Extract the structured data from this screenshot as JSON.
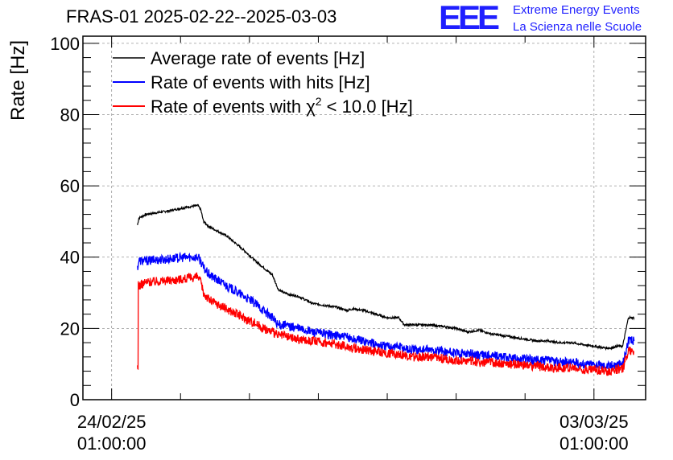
{
  "chart_data": {
    "type": "line",
    "title": "FRAS-01 2025-02-22--2025-03-03",
    "ylabel": "Rate [Hz]",
    "xlabel": "",
    "ylim": [
      0,
      102
    ],
    "yticks": [
      0,
      20,
      40,
      60,
      80,
      100
    ],
    "x_unit": "hours since 24/02/25 01:00:00",
    "xlim": [
      -10,
      186
    ],
    "xticks": [
      {
        "x": 0,
        "line1": "24/02/25",
        "line2": "01:00:00"
      },
      {
        "x": 168,
        "line1": "03/03/25",
        "line2": "01:00:00"
      }
    ],
    "grid": true,
    "legend_position": "top-left",
    "series": [
      {
        "name": "Average rate of events [Hz]",
        "color": "#000000",
        "noise": 0.3,
        "x": [
          9,
          9.5,
          12,
          20,
          26,
          30,
          31,
          32,
          34,
          40,
          46,
          50,
          53,
          56,
          58,
          60,
          62,
          65,
          70,
          78,
          82,
          84,
          88,
          92,
          96,
          100,
          102,
          104,
          110,
          116,
          120,
          124,
          128,
          132,
          136,
          140,
          144,
          148,
          152,
          156,
          160,
          164,
          168,
          172,
          174,
          176,
          178,
          180,
          182
        ],
        "y": [
          49,
          51,
          52,
          53,
          54,
          54.5,
          53.5,
          50,
          48.5,
          46,
          42,
          39,
          37,
          35,
          31,
          30,
          29.5,
          29,
          27,
          26,
          25,
          25.5,
          25,
          24,
          23,
          23,
          21,
          21,
          21,
          20.5,
          20,
          19,
          19.5,
          18.5,
          18,
          17.5,
          17,
          16.5,
          16.5,
          16,
          16,
          15.5,
          15,
          14.5,
          14.5,
          15,
          15,
          23,
          23
        ]
      },
      {
        "name": "Rate of events with hits [Hz]",
        "color": "#0000ff",
        "noise": 1.3,
        "x": [
          9,
          9.5,
          12,
          20,
          26,
          30,
          31,
          32,
          34,
          40,
          46,
          50,
          53,
          56,
          58,
          60,
          62,
          65,
          70,
          78,
          82,
          84,
          88,
          92,
          96,
          100,
          102,
          104,
          110,
          116,
          120,
          124,
          128,
          132,
          136,
          140,
          144,
          148,
          152,
          156,
          160,
          164,
          168,
          172,
          174,
          176,
          178,
          180,
          182
        ],
        "y": [
          37,
          39,
          39,
          39.5,
          40,
          40,
          39,
          37,
          35,
          32,
          29,
          27,
          25,
          23,
          21,
          21,
          20.5,
          20,
          19,
          18,
          17.5,
          17,
          16.5,
          15.5,
          15,
          15,
          14.5,
          14,
          14,
          13.5,
          13,
          13,
          12.5,
          12.5,
          12,
          11.5,
          11.5,
          11,
          11,
          10.5,
          10.5,
          10,
          10,
          9.5,
          9.5,
          10,
          10,
          16.5,
          16.5
        ]
      },
      {
        "name": "Rate of events with χ² < 10.0 [Hz]",
        "color": "#ff0000",
        "noise": 1.3,
        "x": [
          9,
          9.3,
          9.6,
          12,
          20,
          26,
          30,
          31,
          32,
          34,
          40,
          46,
          50,
          53,
          56,
          58,
          60,
          62,
          65,
          70,
          78,
          82,
          84,
          88,
          92,
          96,
          100,
          102,
          104,
          110,
          116,
          120,
          124,
          128,
          132,
          136,
          140,
          144,
          148,
          152,
          156,
          160,
          164,
          168,
          172,
          174,
          176,
          178,
          180,
          182
        ],
        "y": [
          8.5,
          33,
          32,
          33,
          33.5,
          34,
          34.5,
          33,
          30,
          28,
          25.5,
          23,
          21.5,
          20,
          19,
          18,
          18,
          17.5,
          17,
          16.5,
          15.5,
          15,
          14.5,
          14,
          13.5,
          13,
          13,
          12.5,
          12,
          12,
          11.5,
          11,
          11,
          10.5,
          10.5,
          10,
          10,
          9.5,
          9.5,
          9,
          9,
          9,
          8.5,
          8.5,
          8,
          8,
          8.5,
          8.5,
          14,
          13.5
        ]
      }
    ]
  },
  "legend": [
    {
      "prefix": "Average rate of events [Hz]"
    },
    {
      "prefix": "Rate of events with hits [Hz]"
    },
    {
      "prefix": "Rate of events with χ",
      "sup": "2",
      "suffix": " < 10.0 [Hz]"
    }
  ],
  "logo": {
    "mark": "EEE",
    "line1": "Extreme Energy Events",
    "line2": "La Scienza nelle Scuole"
  }
}
